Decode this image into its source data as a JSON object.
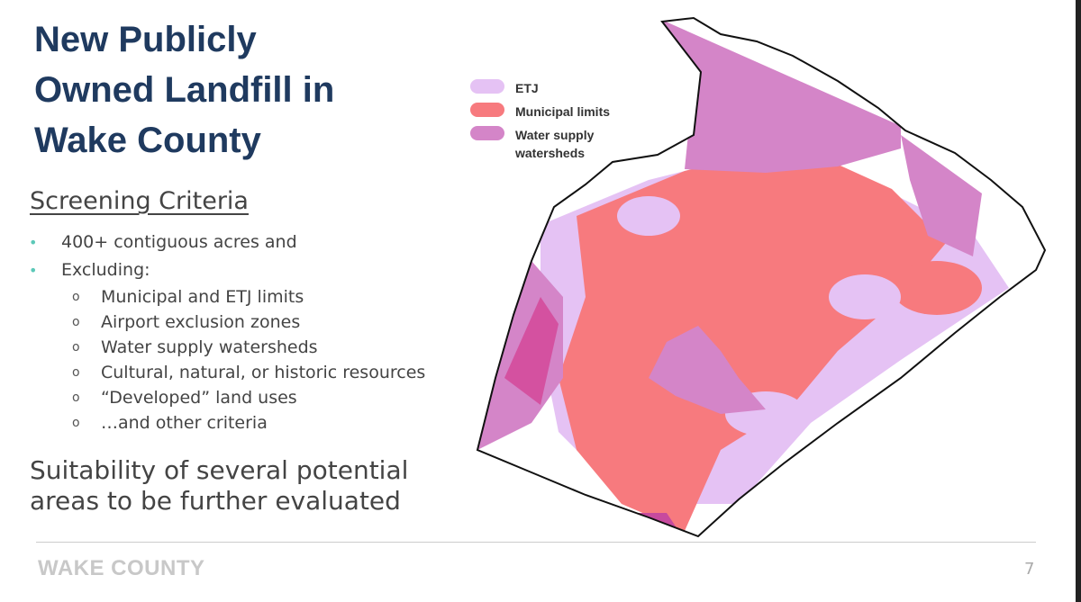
{
  "title": [
    "New Publicly",
    "Owned Landfill in",
    "Wake County"
  ],
  "subtitle": "Screening Criteria",
  "bullets": [
    {
      "text": "400+ contiguous acres and",
      "sub": []
    },
    {
      "text": "Excluding:",
      "sub": [
        "Municipal and ETJ limits",
        "Airport exclusion zones",
        "Water supply watersheds",
        "Cultural, natural, or historic resources",
        "“Developed” land uses",
        "…and other criteria"
      ]
    }
  ],
  "conclusion": [
    "Suitability of several potential",
    "areas to be further evaluated"
  ],
  "legend": [
    "ETJ",
    "Municipal limits",
    "Water supply watersheds"
  ],
  "footer": {
    "brand": "WAKE COUNTY",
    "page": "7"
  }
}
